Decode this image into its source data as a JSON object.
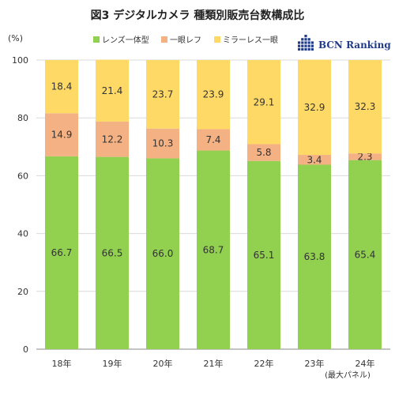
{
  "chart_data": {
    "type": "bar",
    "stacked": true,
    "title": "図3 デジタルカメラ 種類別販売台数構成比",
    "unit_label": "(%)",
    "categories": [
      "18年",
      "19年",
      "20年",
      "21年",
      "22年",
      "23年",
      "24年"
    ],
    "category_note": "(最大パネル)",
    "ylim": [
      0,
      100
    ],
    "yticks": [
      0,
      20,
      40,
      60,
      80,
      100
    ],
    "grid": true,
    "legend_placement": "top",
    "series": [
      {
        "name": "レンズ一体型",
        "color": "#92d050",
        "values": [
          66.7,
          66.5,
          66.0,
          68.7,
          65.1,
          63.8,
          65.4
        ]
      },
      {
        "name": "一眼レフ",
        "color": "#f4b183",
        "values": [
          14.9,
          12.2,
          10.3,
          7.4,
          5.8,
          3.4,
          2.3
        ]
      },
      {
        "name": "ミラーレス一眼",
        "color": "#ffd966",
        "values": [
          18.4,
          21.4,
          23.7,
          23.9,
          29.1,
          32.9,
          32.3
        ]
      }
    ]
  },
  "logo": {
    "text": "BCN Ranking",
    "color": "#1f3b8a"
  }
}
